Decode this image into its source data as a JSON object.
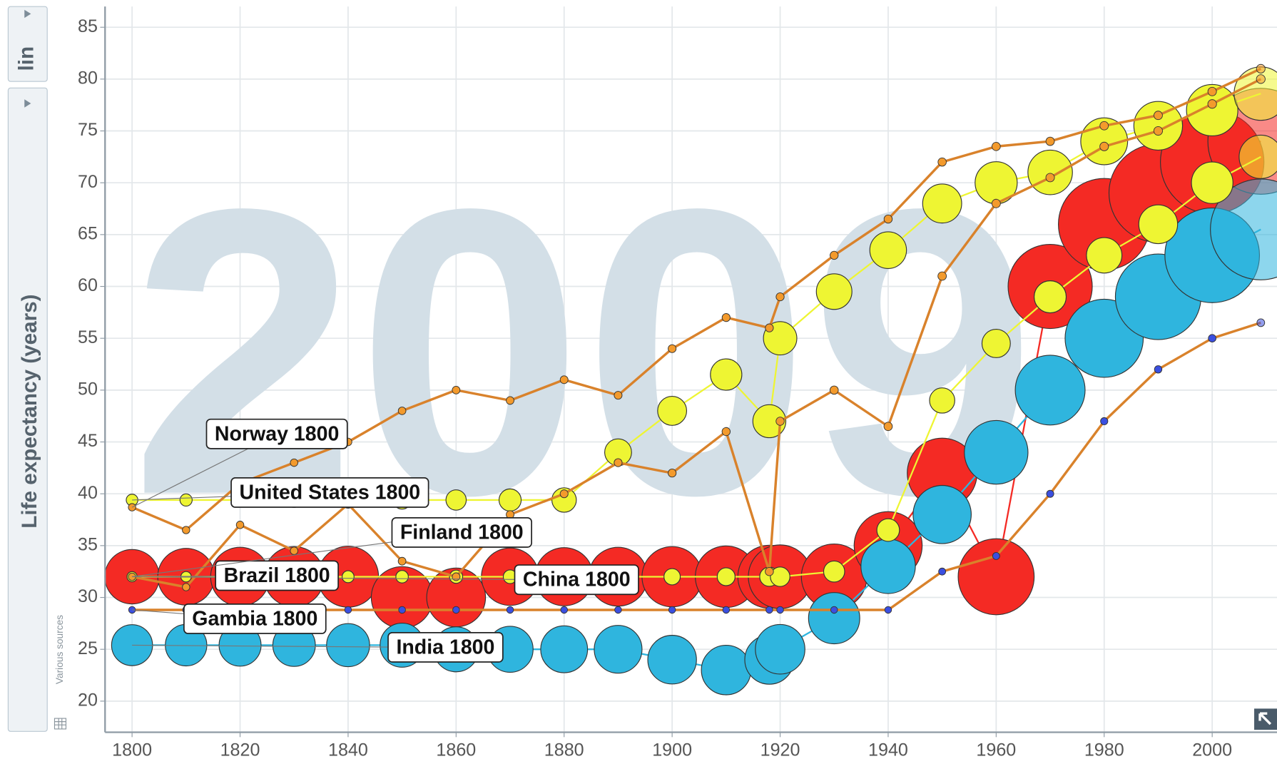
{
  "chart_data": {
    "type": "bubble",
    "year_watermark": "2009",
    "y_label": "Life expectancy (years)",
    "scale_button": "lin",
    "source_note": "Various sources",
    "xlim": [
      1795,
      2012
    ],
    "ylim": [
      17,
      87
    ],
    "xticks": [
      1800,
      1820,
      1840,
      1860,
      1880,
      1900,
      1920,
      1940,
      1960,
      1980,
      2000
    ],
    "yticks": [
      20,
      25,
      30,
      35,
      40,
      45,
      50,
      55,
      60,
      65,
      70,
      75,
      80,
      85
    ],
    "grid": true,
    "x": [
      1800,
      1810,
      1820,
      1830,
      1840,
      1850,
      1860,
      1870,
      1880,
      1890,
      1900,
      1910,
      1918,
      1920,
      1930,
      1940,
      1950,
      1960,
      1970,
      1980,
      1990,
      2000,
      2009
    ],
    "series": [
      {
        "name": "China 1800",
        "color": "#f42a24",
        "marker": "bubble",
        "values": [
          32,
          32,
          32,
          32,
          32,
          30,
          30,
          32,
          32,
          32,
          32,
          32,
          32,
          32,
          32,
          35,
          42,
          32,
          60,
          66,
          69,
          72,
          74
        ],
        "sizes": [
          320,
          350,
          380,
          400,
          410,
          420,
          380,
          360,
          370,
          380,
          400,
          420,
          440,
          450,
          480,
          520,
          550,
          660,
          820,
          980,
          1140,
          1270,
          1330
        ]
      },
      {
        "name": "India 1800",
        "color": "#2fb5de",
        "marker": "bubble",
        "values": [
          25.4,
          25.4,
          25.4,
          25.4,
          25.4,
          25.4,
          25,
          25,
          25,
          25,
          24,
          23,
          24,
          25,
          28,
          33,
          38,
          44,
          50,
          55,
          59,
          63,
          65.5
        ],
        "sizes": [
          170,
          175,
          180,
          185,
          190,
          200,
          210,
          220,
          230,
          240,
          250,
          260,
          255,
          260,
          280,
          320,
          370,
          450,
          550,
          700,
          850,
          1050,
          1200
        ]
      },
      {
        "name": "Brazil 1800",
        "color": "#eef533",
        "marker": "bubble",
        "values": [
          32,
          32,
          32,
          32,
          32,
          32,
          32,
          32,
          32,
          32,
          32,
          32,
          32,
          32,
          32.5,
          36.5,
          49,
          54.5,
          59,
          63,
          66,
          70,
          72.5
        ],
        "sizes": [
          3.6,
          4,
          4.5,
          5.3,
          6.5,
          7.5,
          9,
          10,
          12,
          14.5,
          17,
          22,
          27,
          28,
          34,
          41,
          54,
          72,
          96,
          122,
          150,
          175,
          193
        ]
      },
      {
        "name": "United States 1800",
        "color": "#eef533",
        "marker": "bubble",
        "values": [
          39.4,
          39.4,
          39.4,
          39.4,
          39.4,
          39.4,
          39.4,
          39.4,
          39.4,
          44,
          48,
          51.5,
          47,
          55,
          59.5,
          63.5,
          68,
          70,
          71,
          74,
          75.5,
          77,
          78.6
        ],
        "sizes": [
          6,
          7,
          10,
          13,
          17,
          23,
          31,
          39,
          50,
          63,
          76,
          92,
          103,
          106,
          123,
          132,
          152,
          181,
          205,
          230,
          250,
          282,
          307
        ]
      },
      {
        "name": "Finland 1800",
        "color": "#f39a2c",
        "marker": "dot",
        "values": [
          32,
          31,
          37,
          34.5,
          39,
          33.5,
          32,
          38,
          40,
          43,
          42,
          46,
          32.5,
          47,
          50,
          46.5,
          61,
          68,
          70.5,
          73.5,
          75,
          77.6,
          80
        ],
        "sizes": [
          0.8,
          0.9,
          1.1,
          1.3,
          1.4,
          1.6,
          1.7,
          1.8,
          2.1,
          2.4,
          2.6,
          2.9,
          3.1,
          3.1,
          3.4,
          3.7,
          4,
          4.4,
          4.6,
          4.8,
          5,
          5.2,
          5.3
        ]
      },
      {
        "name": "Norway 1800",
        "color": "#f39a2c",
        "marker": "dot",
        "values": [
          38.7,
          36.5,
          41,
          43,
          45,
          48,
          50,
          49,
          51,
          49.5,
          54,
          57,
          56,
          59,
          63,
          66.5,
          72,
          73.5,
          74,
          75.5,
          76.5,
          78.8,
          81
        ],
        "sizes": [
          0.9,
          0.9,
          1,
          1.1,
          1.2,
          1.4,
          1.6,
          1.7,
          1.9,
          2,
          2.2,
          2.4,
          2.6,
          2.6,
          2.8,
          3,
          3.3,
          3.6,
          3.9,
          4.1,
          4.2,
          4.5,
          4.8
        ]
      },
      {
        "name": "Gambia 1800",
        "color": "#3b4fe0",
        "marker": "dot",
        "values": [
          28.8,
          28.8,
          28.8,
          28.8,
          28.8,
          28.8,
          28.8,
          28.8,
          28.8,
          28.8,
          28.8,
          28.8,
          28.8,
          28.8,
          28.8,
          28.8,
          32.5,
          34,
          40,
          47,
          52,
          55,
          56.5
        ],
        "sizes": [
          0.1,
          0.1,
          0.1,
          0.1,
          0.1,
          0.1,
          0.1,
          0.1,
          0.1,
          0.1,
          0.1,
          0.1,
          0.1,
          0.1,
          0.1,
          0.1,
          0.3,
          0.4,
          0.5,
          0.6,
          0.9,
          1.3,
          1.6
        ]
      }
    ]
  }
}
